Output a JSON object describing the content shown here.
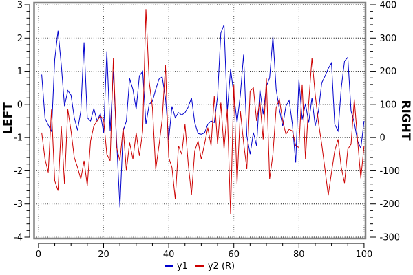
{
  "chart_data": {
    "type": "line",
    "title": "",
    "grid": "dotted",
    "background": "#ffffff",
    "frame_color": "#808080",
    "axis_color": "#000000",
    "legend_position": "bottom-center",
    "x_start": 1,
    "x_step": 1,
    "x_axis": {
      "min": 0,
      "max": 100,
      "major_ticks": [
        0,
        20,
        40,
        60,
        80,
        100
      ],
      "minor_step": 5
    },
    "left_axis": {
      "label": "LEFT",
      "min": -4,
      "max": 3,
      "major_ticks": [
        3,
        2,
        1,
        0,
        -1,
        -2,
        -3,
        -4
      ],
      "minor_step": 0.2
    },
    "right_axis": {
      "label": "RIGHT",
      "min": -300,
      "max": 400,
      "major_ticks": [
        400,
        300,
        200,
        100,
        0,
        -100,
        -200,
        -300
      ],
      "minor_step": 20
    },
    "series": [
      {
        "name": "y1",
        "axis": "left",
        "color": "#0000cc",
        "values": [
          0.9,
          -0.42,
          -0.62,
          -0.82,
          1.35,
          2.22,
          1.2,
          -0.05,
          0.42,
          0.28,
          -0.4,
          -0.78,
          -0.2,
          1.87,
          -0.4,
          -0.5,
          -0.12,
          -0.5,
          -0.28,
          -0.85,
          1.6,
          -0.8,
          1.0,
          -1.1,
          -3.1,
          -0.8,
          -0.5,
          0.78,
          0.45,
          -0.15,
          0.86,
          1.0,
          -0.6,
          0.0,
          0.1,
          0.45,
          0.76,
          0.83,
          0.2,
          -1.06,
          -0.06,
          -0.4,
          -0.25,
          -0.32,
          -0.25,
          -0.08,
          0.2,
          -0.55,
          -0.88,
          -0.9,
          -0.86,
          -0.6,
          -0.5,
          -0.55,
          0.25,
          2.15,
          2.4,
          -0.22,
          1.07,
          0.3,
          -0.55,
          0.3,
          1.5,
          -0.95,
          -1.5,
          -0.85,
          -1.25,
          0.45,
          -0.3,
          0.55,
          0.8,
          2.05,
          0.45,
          -0.15,
          -0.65,
          -0.05,
          0.12,
          -0.6,
          -1.75,
          0.75,
          -0.45,
          0.02,
          -0.55,
          0.2,
          -0.65,
          -0.2,
          0.65,
          0.85,
          1.08,
          1.25,
          -0.6,
          -0.8,
          0.5,
          1.3,
          1.42,
          -0.2,
          -0.55,
          -1.1,
          -1.32,
          -0.5
        ]
      },
      {
        "name": "y2 (R)",
        "axis": "right",
        "color": "#cc0000",
        "values": [
          15,
          -65,
          -105,
          85,
          -130,
          -160,
          35,
          -140,
          85,
          20,
          -60,
          -90,
          -125,
          -70,
          -145,
          -10,
          35,
          50,
          65,
          55,
          -50,
          -70,
          240,
          -30,
          -70,
          30,
          -100,
          -15,
          -65,
          15,
          -55,
          20,
          387,
          170,
          90,
          -96,
          -25,
          55,
          218,
          -60,
          -90,
          -185,
          -25,
          -50,
          40,
          -80,
          -172,
          -40,
          -10,
          -65,
          -20,
          30,
          -25,
          125,
          -20,
          105,
          -35,
          85,
          -230,
          160,
          -140,
          80,
          -15,
          -95,
          140,
          150,
          50,
          110,
          -5,
          178,
          -125,
          -50,
          90,
          115,
          50,
          10,
          25,
          20,
          -25,
          -30,
          160,
          -65,
          105,
          240,
          130,
          45,
          -20,
          -95,
          -174,
          -105,
          -40,
          -5,
          -90,
          -137,
          -35,
          -20,
          115,
          -5,
          -123,
          -25
        ]
      }
    ],
    "legend": [
      {
        "label": "y1",
        "color": "#0000cc"
      },
      {
        "label": "y2 (R)",
        "color": "#cc0000"
      }
    ]
  }
}
